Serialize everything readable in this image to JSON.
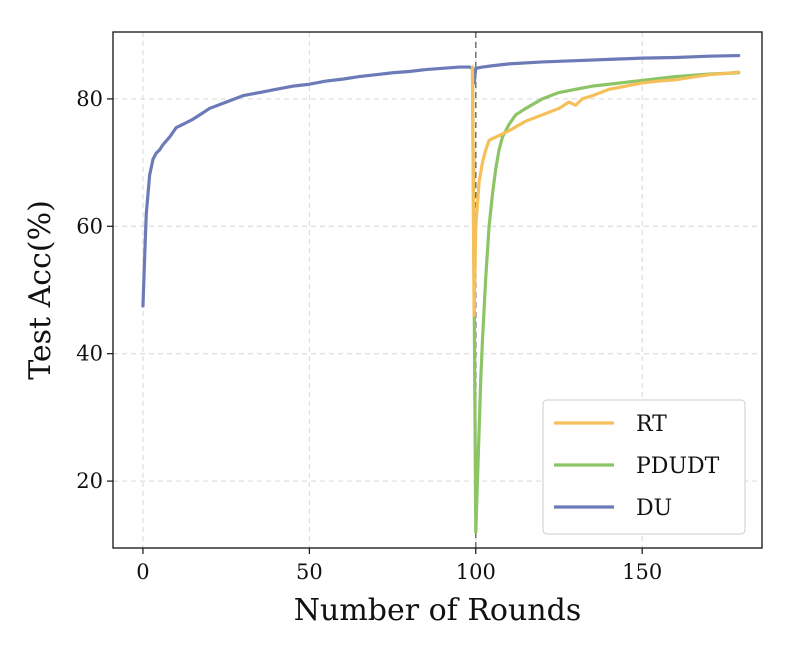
{
  "chart_data": {
    "type": "line",
    "xlabel": "Number of Rounds",
    "ylabel": "Test Acc(%)",
    "xlim": [
      -9,
      186
    ],
    "ylim": [
      9.5,
      90.5
    ],
    "xticks": [
      0,
      50,
      100,
      150
    ],
    "yticks": [
      20,
      40,
      60,
      80
    ],
    "xtick_labels": [
      "0",
      "50",
      "100",
      "150"
    ],
    "ytick_labels": [
      "20",
      "40",
      "60",
      "80"
    ],
    "grid": true,
    "legend_position": "lower-right",
    "vline": {
      "x": 100,
      "color": "#777777",
      "style": "dashed"
    },
    "series": [
      {
        "name": "RT",
        "color": "#F5BF5A",
        "x": [
          99,
          99.5,
          100,
          101,
          102,
          103,
          104,
          106,
          108,
          110,
          115,
          120,
          125,
          128,
          130,
          132,
          135,
          140,
          145,
          150,
          155,
          160,
          165,
          170,
          175,
          179
        ],
        "y": [
          85,
          46,
          60,
          67,
          70,
          72,
          73.5,
          74,
          74.5,
          75,
          76.5,
          77.5,
          78.5,
          79.5,
          79,
          80,
          80.5,
          81.5,
          82,
          82.5,
          82.8,
          83,
          83.4,
          83.8,
          84,
          84.2
        ]
      },
      {
        "name": "PDUDT",
        "color": "#8CC466",
        "x": [
          99,
          99.5,
          100,
          100.5,
          101,
          101.5,
          102,
          103,
          104,
          105,
          106,
          107,
          108,
          110,
          112,
          115,
          120,
          125,
          130,
          135,
          140,
          145,
          150,
          155,
          160,
          165,
          170,
          175,
          179
        ],
        "y": [
          85,
          50,
          12,
          20,
          28,
          36,
          42,
          52,
          60,
          65,
          69,
          72,
          74,
          76,
          77.5,
          78.5,
          80,
          81,
          81.5,
          82,
          82.3,
          82.6,
          82.9,
          83.2,
          83.5,
          83.7,
          83.9,
          84,
          84.1
        ]
      },
      {
        "name": "DU",
        "color": "#6C7BB8",
        "x": [
          0,
          0.5,
          1,
          1.5,
          2,
          3,
          4,
          5,
          6,
          8,
          10,
          12,
          15,
          18,
          20,
          25,
          30,
          35,
          40,
          45,
          50,
          55,
          60,
          65,
          70,
          75,
          80,
          85,
          90,
          95,
          98,
          99,
          99.5,
          100,
          101,
          102,
          105,
          110,
          120,
          130,
          140,
          150,
          160,
          170,
          179
        ],
        "y": [
          47.5,
          55,
          62,
          65,
          68,
          70.5,
          71.5,
          72,
          72.8,
          74,
          75.5,
          76,
          76.8,
          77.8,
          78.5,
          79.5,
          80.5,
          81,
          81.5,
          82,
          82.3,
          82.8,
          83.1,
          83.5,
          83.8,
          84.1,
          84.3,
          84.6,
          84.8,
          85,
          85,
          84.8,
          82.5,
          84.8,
          84.9,
          85,
          85.2,
          85.5,
          85.8,
          86,
          86.2,
          86.4,
          86.5,
          86.7,
          86.8
        ]
      }
    ]
  }
}
